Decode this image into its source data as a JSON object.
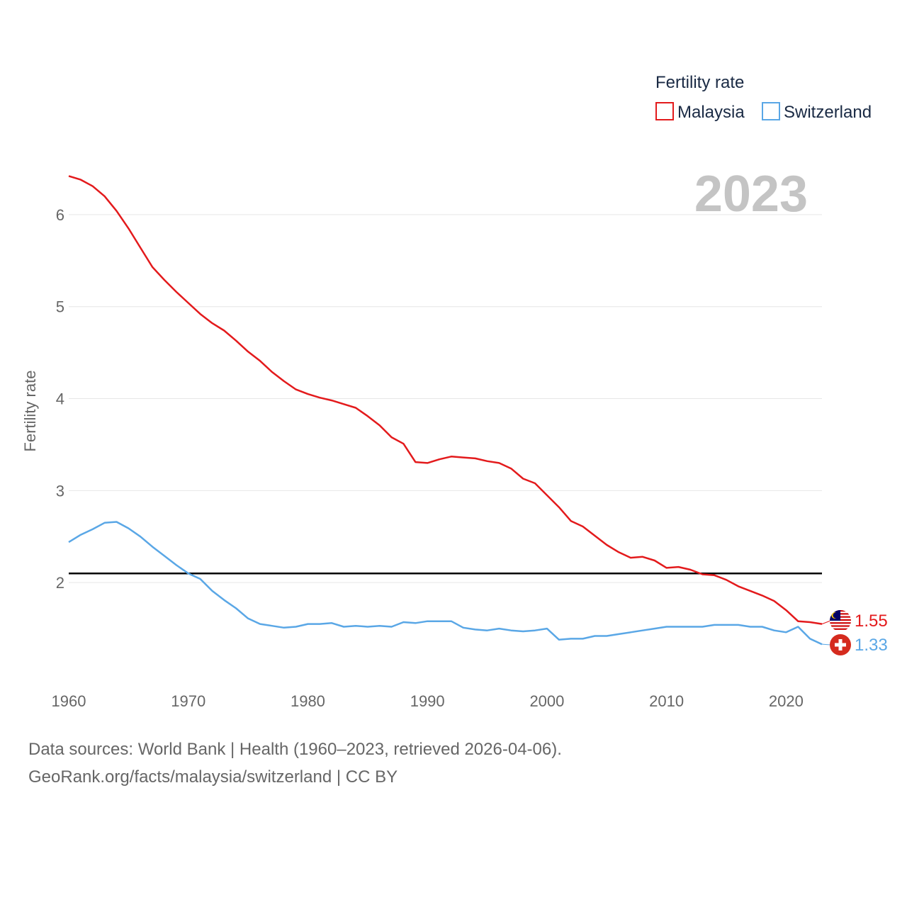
{
  "chart_data": {
    "type": "line",
    "title": "",
    "legend_title": "Fertility rate",
    "year_label": "2023",
    "ylabel": "Fertility rate",
    "xlabel": "",
    "x_ticks": [
      "1960",
      "1970",
      "1980",
      "1990",
      "2000",
      "2010",
      "2020"
    ],
    "y_ticks": [
      "2",
      "3",
      "4",
      "5",
      "6"
    ],
    "xlim": [
      1960,
      2023
    ],
    "ylim": [
      1.0,
      6.5
    ],
    "reference_line": {
      "value": 2.1,
      "color": "#000000"
    },
    "x": [
      1960,
      1961,
      1962,
      1963,
      1964,
      1965,
      1966,
      1967,
      1968,
      1969,
      1970,
      1971,
      1972,
      1973,
      1974,
      1975,
      1976,
      1977,
      1978,
      1979,
      1980,
      1981,
      1982,
      1983,
      1984,
      1985,
      1986,
      1987,
      1988,
      1989,
      1990,
      1991,
      1992,
      1993,
      1994,
      1995,
      1996,
      1997,
      1998,
      1999,
      2000,
      2001,
      2002,
      2003,
      2004,
      2005,
      2006,
      2007,
      2008,
      2009,
      2010,
      2011,
      2012,
      2013,
      2014,
      2015,
      2016,
      2017,
      2018,
      2019,
      2020,
      2021,
      2022,
      2023
    ],
    "series": [
      {
        "name": "Malaysia",
        "color": "#e31a1c",
        "end_label": "1.55",
        "flag": "malaysia-flag-icon",
        "values": [
          6.42,
          6.38,
          6.31,
          6.2,
          6.04,
          5.85,
          5.64,
          5.43,
          5.29,
          5.16,
          5.04,
          4.92,
          4.82,
          4.74,
          4.63,
          4.51,
          4.41,
          4.29,
          4.19,
          4.1,
          4.05,
          4.01,
          3.98,
          3.94,
          3.9,
          3.81,
          3.71,
          3.58,
          3.51,
          3.31,
          3.3,
          3.34,
          3.37,
          3.36,
          3.35,
          3.32,
          3.3,
          3.24,
          3.13,
          3.08,
          2.95,
          2.82,
          2.67,
          2.61,
          2.51,
          2.41,
          2.33,
          2.27,
          2.28,
          2.24,
          2.16,
          2.17,
          2.14,
          2.09,
          2.08,
          2.03,
          1.96,
          1.91,
          1.86,
          1.8,
          1.7,
          1.58,
          1.57,
          1.55
        ]
      },
      {
        "name": "Switzerland",
        "color": "#5aa7e6",
        "end_label": "1.33",
        "flag": "switzerland-flag-icon",
        "values": [
          2.44,
          2.52,
          2.58,
          2.65,
          2.66,
          2.59,
          2.5,
          2.39,
          2.29,
          2.19,
          2.1,
          2.04,
          1.91,
          1.81,
          1.72,
          1.61,
          1.55,
          1.53,
          1.51,
          1.52,
          1.55,
          1.55,
          1.56,
          1.52,
          1.53,
          1.52,
          1.53,
          1.52,
          1.57,
          1.56,
          1.58,
          1.58,
          1.58,
          1.51,
          1.49,
          1.48,
          1.5,
          1.48,
          1.47,
          1.48,
          1.5,
          1.38,
          1.39,
          1.39,
          1.42,
          1.42,
          1.44,
          1.46,
          1.48,
          1.5,
          1.52,
          1.52,
          1.52,
          1.52,
          1.54,
          1.54,
          1.54,
          1.52,
          1.52,
          1.48,
          1.46,
          1.52,
          1.39,
          1.33
        ]
      }
    ]
  },
  "footer": {
    "line1": "Data sources: World Bank | Health (1960–2023, retrieved 2026-04-06).",
    "line2": "GeoRank.org/facts/malaysia/switzerland | CC BY"
  }
}
